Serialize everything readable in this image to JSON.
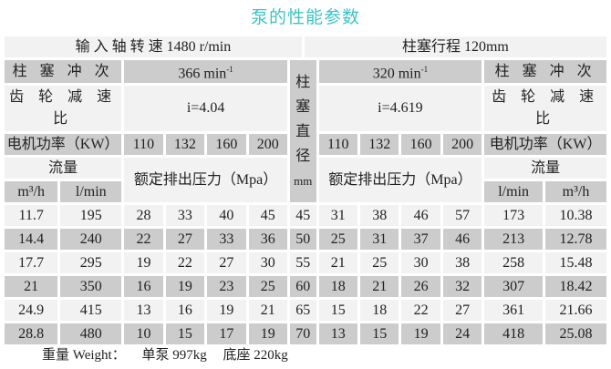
{
  "title": "泵的性能参数",
  "header": {
    "input_speed": "输 入 轴 转 速 1480 r/min",
    "stroke": "柱塞行程 120mm",
    "stroke_freq_label": "柱 塞 冲 次",
    "left_freq": "366  min",
    "right_freq": "320  min",
    "freq_exp": "-1",
    "gear_label": "齿 轮 减 速 比",
    "left_ratio": "i=4.04",
    "right_ratio": "i=4.619",
    "power_label": "电机功率（KW）",
    "powers": [
      "110",
      "132",
      "160",
      "200"
    ],
    "flow_label": "流量",
    "pressure_label": "额定排出压力（Mpa）",
    "plunger_dia": "柱塞直径",
    "plunger_unit": "mm",
    "unit_m3h": "m³/h",
    "unit_lmin": "l/min"
  },
  "rows": [
    {
      "m3h": "11.7",
      "lmin": "195",
      "lp": [
        "28",
        "33",
        "40",
        "45"
      ],
      "dia": "45",
      "rp": [
        "31",
        "38",
        "46",
        "57"
      ],
      "rlmin": "173",
      "rm3h": "10.38"
    },
    {
      "m3h": "14.4",
      "lmin": "240",
      "lp": [
        "22",
        "27",
        "33",
        "36"
      ],
      "dia": "50",
      "rp": [
        "25",
        "31",
        "37",
        "46"
      ],
      "rlmin": "213",
      "rm3h": "12.78"
    },
    {
      "m3h": "17.7",
      "lmin": "295",
      "lp": [
        "19",
        "22",
        "27",
        "30"
      ],
      "dia": "55",
      "rp": [
        "21",
        "25",
        "30",
        "38"
      ],
      "rlmin": "258",
      "rm3h": "15.48"
    },
    {
      "m3h": "21",
      "lmin": "350",
      "lp": [
        "16",
        "19",
        "23",
        "25"
      ],
      "dia": "60",
      "rp": [
        "18",
        "21",
        "26",
        "32"
      ],
      "rlmin": "307",
      "rm3h": "18.42"
    },
    {
      "m3h": "24.9",
      "lmin": "415",
      "lp": [
        "13",
        "16",
        "19",
        "21"
      ],
      "dia": "65",
      "rp": [
        "15",
        "18",
        "22",
        "27"
      ],
      "rlmin": "361",
      "rm3h": "21.66"
    },
    {
      "m3h": "28.8",
      "lmin": "480",
      "lp": [
        "10",
        "15",
        "17",
        "19"
      ],
      "dia": "70",
      "rp": [
        "13",
        "15",
        "19",
        "24"
      ],
      "rlmin": "418",
      "rm3h": "25.08"
    }
  ],
  "weight": {
    "label": "重量 Weight：",
    "pump": "单泵 997kg",
    "base": "底座 220kg"
  },
  "colors": {
    "title": "#3cc4c4",
    "light_cell": "#f2f2f2",
    "dark_cell": "#cccccc"
  }
}
